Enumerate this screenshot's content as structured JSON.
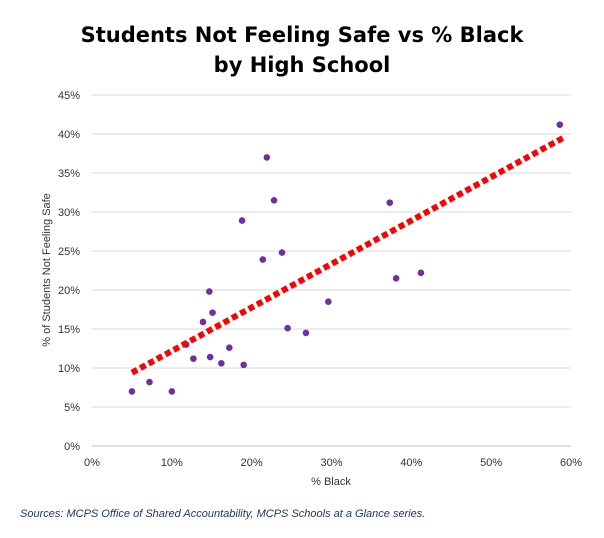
{
  "chart_data": {
    "type": "scatter",
    "title_lines": [
      "Students Not Feeling Safe vs % Black",
      "by High School"
    ],
    "xlabel": "% Black",
    "ylabel": "% of Students Not Feeling Safe",
    "xlim": [
      0,
      0.6
    ],
    "ylim": [
      0,
      0.45
    ],
    "x_ticks": [
      0,
      0.1,
      0.2,
      0.3,
      0.4,
      0.5,
      0.6
    ],
    "x_tick_labels": [
      "0%",
      "10%",
      "20%",
      "30%",
      "40%",
      "50%",
      "60%"
    ],
    "y_ticks": [
      0,
      0.05,
      0.1,
      0.15,
      0.2,
      0.25,
      0.3,
      0.35,
      0.4,
      0.45
    ],
    "y_tick_labels": [
      "0%",
      "5%",
      "10%",
      "15%",
      "20%",
      "25%",
      "30%",
      "35%",
      "40%",
      "45%"
    ],
    "grid": "horizontal",
    "legend": "none",
    "points_color": "#7030a0",
    "trendline_color": "#ff0000",
    "trendline": [
      [
        0.05,
        0.094
      ],
      [
        0.59,
        0.395
      ]
    ],
    "series": [
      {
        "points": [
          [
            0.05,
            0.07
          ],
          [
            0.072,
            0.082
          ],
          [
            0.1,
            0.07
          ],
          [
            0.118,
            0.13
          ],
          [
            0.127,
            0.112
          ],
          [
            0.139,
            0.159
          ],
          [
            0.147,
            0.198
          ],
          [
            0.148,
            0.114
          ],
          [
            0.151,
            0.171
          ],
          [
            0.162,
            0.106
          ],
          [
            0.172,
            0.126
          ],
          [
            0.188,
            0.289
          ],
          [
            0.19,
            0.104
          ],
          [
            0.214,
            0.239
          ],
          [
            0.219,
            0.37
          ],
          [
            0.228,
            0.315
          ],
          [
            0.238,
            0.248
          ],
          [
            0.245,
            0.151
          ],
          [
            0.268,
            0.145
          ],
          [
            0.296,
            0.185
          ],
          [
            0.373,
            0.312
          ],
          [
            0.381,
            0.215
          ],
          [
            0.412,
            0.222
          ],
          [
            0.586,
            0.412
          ]
        ]
      }
    ]
  },
  "source_note": "Sources: MCPS Office of Shared Accountability, MCPS Schools at a Glance series."
}
